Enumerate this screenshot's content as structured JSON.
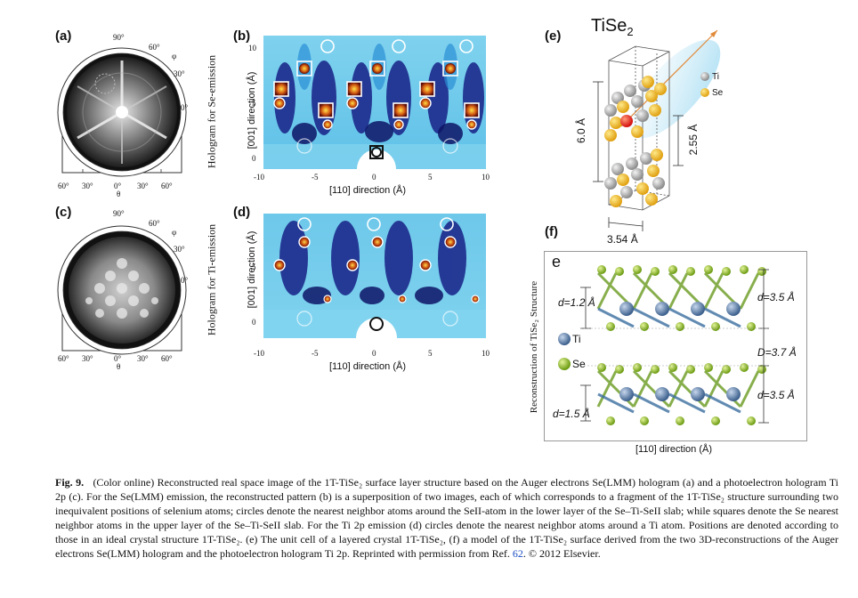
{
  "panels": {
    "a": {
      "label": "(a)"
    },
    "b": {
      "label": "(b)"
    },
    "c": {
      "label": "(c)"
    },
    "d": {
      "label": "(d)"
    },
    "e": {
      "label": "(e)"
    },
    "f": {
      "label": "(f)"
    }
  },
  "stereo": {
    "phi_top": "90°",
    "phi_60": "60°",
    "phi_30": "30°",
    "phi_0": "0°",
    "phi_symbol": "φ",
    "theta_ticks": [
      "60°",
      "30°",
      "0°",
      "30°",
      "60°"
    ],
    "theta_symbol": "θ"
  },
  "hologram_b": {
    "side_label": "Hologram for Se-emission",
    "y_label": "[001] direction (Å)",
    "x_label": "[110] direction (Å)",
    "x_ticks": [
      "-10",
      "-5",
      "0",
      "5",
      "10"
    ],
    "y_ticks": [
      "10",
      "5",
      "0"
    ]
  },
  "hologram_d": {
    "side_label": "Hologram for Ti-emission",
    "y_label": "[001] direction (Å)",
    "x_label": "[110] direction (Å)",
    "x_ticks": [
      "-10",
      "-5",
      "0",
      "5",
      "10"
    ],
    "y_ticks": [
      "5",
      "0"
    ]
  },
  "unit_cell": {
    "title_main": "TiSe",
    "title_sub": "2",
    "legend_ti": "Ti",
    "legend_se": "Se",
    "dim_height": "6.0 Å",
    "dim_layer": "2.55 Å",
    "dim_width": "3.54 Å"
  },
  "model_f": {
    "side_label": "Reconstruction of  TiSe₂ Structure",
    "inner_label": "e",
    "d_top_left": "d=1.2 Å",
    "d_top_right": "d=3.5 Å",
    "d_gap": "D=3.7 Å",
    "d_bot_left": "d=1.5 Å",
    "d_bot_right": "d=3.5 Å",
    "legend_ti": "Ti",
    "legend_se": "Se",
    "x_label": "[110] direction (Å)"
  },
  "caption": {
    "fig_number": "Fig. 9.",
    "text_1": "(Color online) Reconstructed real space image of the 1T-TiSe₂ surface layer structure based on the Auger electrons Se(LMM) hologram (a) and a photoelectron hologram Ti 2p (c). For the Se(LMM) emission, the reconstructed pattern (b) is a superposition of two images, each of which corresponds to a fragment of the 1T-TiSe₂ structure surrounding two inequivalent positions of selenium atoms; circles denote the nearest neighbor atoms around the SeII-atom in the lower layer of the Se–Ti-SeII slab; while squares denote the Se nearest neighbor atoms in the upper layer of the Se–Ti-SeII slab. For the Ti 2p emission (d) circles denote the nearest neighbor atoms around a Ti atom. Positions are denoted according to those in an ideal crystal structure 1T-TiSe₂. (e) The unit cell of a layered crystal 1T-TiSe₂, (f) a model of the 1T-TiSe₂ surface derived from the two 3D-reconstructions of the Auger electrons Se(LMM) hologram and the photoelectron hologram Ti 2p. Reprinted with permission from Ref.",
    "ref_num": "62",
    "text_2": ". © 2012 Elsevier."
  }
}
